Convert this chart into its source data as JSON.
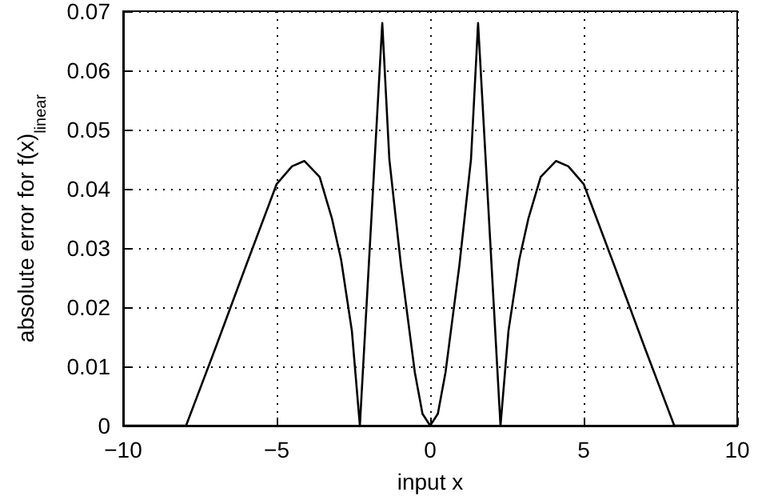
{
  "chart_data": {
    "type": "line",
    "xlabel": "input x",
    "ylabel": "absolute error for f(x)$_{linear}$",
    "x": [
      -10,
      -7.95,
      -7,
      -6,
      -5,
      -4.5,
      -4.1,
      -3.6,
      -3.2,
      -2.9,
      -2.55,
      -2.29,
      -1.56,
      -1.33,
      -0.95,
      -0.5,
      -0.25,
      0,
      0.25,
      0.5,
      0.95,
      1.33,
      1.56,
      2.29,
      2.55,
      2.9,
      3.2,
      3.6,
      4.1,
      4.5,
      5,
      6,
      7,
      7.95,
      10
    ],
    "series": [
      {
        "color": "#000000",
        "values": [
          0,
          0,
          0.013,
          0.027,
          0.0408,
          0.0438,
          0.0447,
          0.042,
          0.035,
          0.028,
          0.016,
          0,
          0.068,
          0.045,
          0.027,
          0.009,
          0.002,
          0,
          0.002,
          0.009,
          0.027,
          0.045,
          0.068,
          0,
          0.016,
          0.028,
          0.035,
          0.042,
          0.0447,
          0.0438,
          0.0408,
          0.027,
          0.013,
          0,
          0
        ]
      }
    ],
    "xlim": [
      -10,
      10
    ],
    "xticks": [
      -10,
      -5,
      0,
      5,
      10
    ],
    "ylim": [
      0,
      0.07
    ],
    "yticks": [
      0,
      0.01,
      0.02,
      0.03,
      0.04,
      0.05,
      0.06,
      0.07
    ],
    "grid": true,
    "marker": "none",
    "line_style": "solid"
  }
}
